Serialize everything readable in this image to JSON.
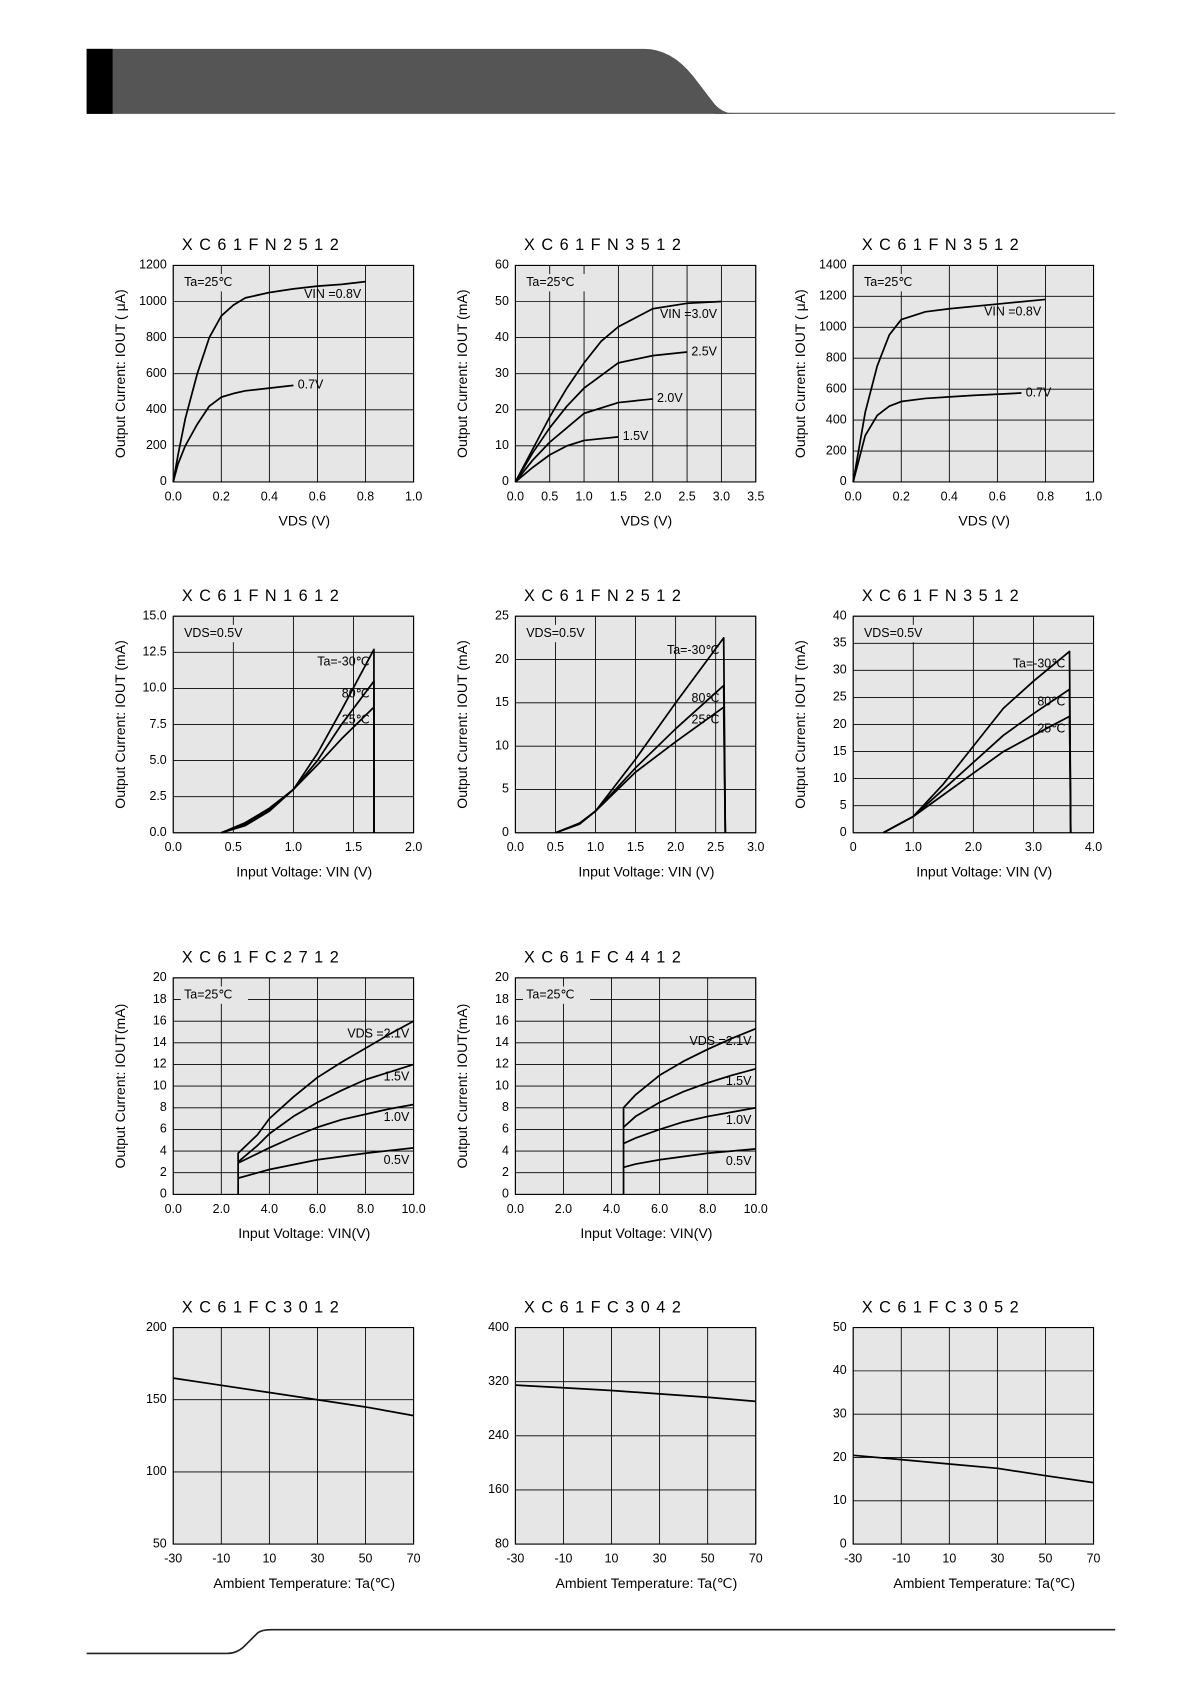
{
  "chart_data": [
    {
      "type": "line",
      "title": "XC61FN2512",
      "ylabel": "Output Current: IOUT ( μA)",
      "xlabel": "VDS (V)",
      "annotations": [
        "Ta=25℃"
      ],
      "color": "#000000",
      "grid": true,
      "xlim": [
        0,
        1
      ],
      "xticks": [
        {
          "value": 0,
          "label": "0.0"
        },
        0.2,
        0.4,
        0.6,
        0.8,
        {
          "value": 1,
          "label": "1.0"
        }
      ],
      "ylim": [
        0,
        1200
      ],
      "yticks": [
        0,
        200,
        400,
        600,
        800,
        1000,
        1200
      ],
      "series": [
        {
          "name": "VIN =0.8V",
          "x": [
            0,
            0.02,
            0.05,
            0.1,
            0.15,
            0.2,
            0.25,
            0.3,
            0.4,
            0.5,
            0.6,
            0.7,
            0.8
          ],
          "values": [
            0,
            150,
            350,
            600,
            800,
            920,
            980,
            1020,
            1050,
            1070,
            1085,
            1095,
            1110
          ]
        },
        {
          "name": "0.7V",
          "x": [
            0,
            0.02,
            0.05,
            0.1,
            0.15,
            0.2,
            0.25,
            0.3,
            0.4,
            0.5
          ],
          "values": [
            0,
            100,
            200,
            320,
            420,
            470,
            490,
            505,
            520,
            535
          ]
        }
      ]
    },
    {
      "type": "line",
      "title": "XC61FN3512",
      "ylabel": "Output Current: IOUT (mA)",
      "xlabel": "VDS (V)",
      "annotations": [
        "Ta=25℃"
      ],
      "color": "#000000",
      "grid": true,
      "xlim": [
        0,
        3.5
      ],
      "xticks": [
        {
          "value": 0,
          "label": "0.0"
        },
        0.5,
        {
          "value": 1,
          "label": "1.0"
        },
        1.5,
        {
          "value": 2,
          "label": "2.0"
        },
        2.5,
        {
          "value": 3,
          "label": "3.0"
        },
        3.5
      ],
      "ylim": [
        0,
        60
      ],
      "yticks": [
        0,
        10,
        20,
        30,
        40,
        50,
        60
      ],
      "series": [
        {
          "name": "VIN =3.0V",
          "x": [
            0,
            0.25,
            0.5,
            0.75,
            1,
            1.25,
            1.5,
            2,
            2.5,
            3
          ],
          "values": [
            0,
            9,
            18,
            26,
            33,
            39,
            43,
            48,
            49.5,
            50
          ]
        },
        {
          "name": "2.5V",
          "x": [
            0,
            0.25,
            0.5,
            0.75,
            1,
            1.5,
            2,
            2.5
          ],
          "values": [
            0,
            8,
            15,
            21,
            26,
            33,
            35,
            36
          ]
        },
        {
          "name": "2.0V",
          "x": [
            0,
            0.25,
            0.5,
            0.75,
            1,
            1.5,
            2
          ],
          "values": [
            0,
            6,
            11,
            15,
            19,
            22,
            23
          ]
        },
        {
          "name": "1.5V",
          "x": [
            0,
            0.25,
            0.5,
            0.75,
            1,
            1.5
          ],
          "values": [
            0,
            4,
            7.5,
            10,
            11.5,
            12.5
          ]
        }
      ]
    },
    {
      "type": "line",
      "title": "XC61FN3512",
      "ylabel": "Output Current: IOUT ( μA)",
      "xlabel": "VDS (V)",
      "annotations": [
        "Ta=25℃"
      ],
      "color": "#000000",
      "grid": true,
      "xlim": [
        0,
        1
      ],
      "xticks": [
        {
          "value": 0,
          "label": "0.0"
        },
        0.2,
        0.4,
        0.6,
        0.8,
        {
          "value": 1,
          "label": "1.0"
        }
      ],
      "ylim": [
        0,
        1400
      ],
      "yticks": [
        0,
        200,
        400,
        600,
        800,
        1000,
        1200,
        1400
      ],
      "series": [
        {
          "name": "VIN =0.8V",
          "x": [
            0,
            0.05,
            0.1,
            0.15,
            0.2,
            0.3,
            0.4,
            0.6,
            0.8
          ],
          "values": [
            0,
            450,
            750,
            950,
            1050,
            1100,
            1120,
            1150,
            1180
          ]
        },
        {
          "name": "0.7V",
          "x": [
            0,
            0.05,
            0.1,
            0.15,
            0.2,
            0.3,
            0.4,
            0.5,
            0.7
          ],
          "values": [
            0,
            300,
            430,
            490,
            520,
            540,
            550,
            560,
            575
          ]
        }
      ]
    },
    {
      "type": "line",
      "title": "XC61FN1612",
      "ylabel": "Output Current: IOUT (mA)",
      "xlabel": "Input Voltage: VIN (V)",
      "annotations": [
        "VDS=0.5V"
      ],
      "color": "#000000",
      "grid": true,
      "xlim": [
        0,
        2
      ],
      "xticks": [
        {
          "value": 0,
          "label": "0.0"
        },
        0.5,
        {
          "value": 1,
          "label": "1.0"
        },
        1.5,
        {
          "value": 2,
          "label": "2.0"
        }
      ],
      "ylim": [
        0,
        15
      ],
      "yticks": [
        {
          "value": 0,
          "label": "0.0"
        },
        2.5,
        {
          "value": 5,
          "label": "5.0"
        },
        7.5,
        {
          "value": 10,
          "label": "10.0"
        },
        12.5,
        {
          "value": 15,
          "label": "15.0"
        }
      ],
      "series": [
        {
          "name": "Ta=-30℃",
          "x": [
            0.4,
            0.6,
            0.8,
            1.0,
            1.2,
            1.4,
            1.67,
            1.67
          ],
          "values": [
            0,
            0.5,
            1.5,
            3,
            5.5,
            8.5,
            12.7,
            0
          ]
        },
        {
          "name": "80℃",
          "x": [
            0.4,
            0.6,
            0.8,
            1.0,
            1.2,
            1.4,
            1.67,
            1.67
          ],
          "values": [
            0,
            0.6,
            1.6,
            3,
            5,
            7.5,
            10.5,
            0
          ]
        },
        {
          "name": "25℃",
          "x": [
            0.4,
            0.6,
            0.8,
            1.0,
            1.2,
            1.4,
            1.67,
            1.67
          ],
          "values": [
            0,
            0.7,
            1.7,
            3,
            4.7,
            6.5,
            8.7,
            0
          ]
        }
      ]
    },
    {
      "type": "line",
      "title": "XC61FN2512",
      "ylabel": "Output Current: IOUT (mA)",
      "xlabel": "Input Voltage: VIN (V)",
      "annotations": [
        "VDS=0.5V"
      ],
      "color": "#000000",
      "grid": true,
      "xlim": [
        0,
        3
      ],
      "xticks": [
        {
          "value": 0,
          "label": "0.0"
        },
        0.5,
        {
          "value": 1,
          "label": "1.0"
        },
        1.5,
        {
          "value": 2,
          "label": "2.0"
        },
        2.5,
        {
          "value": 3,
          "label": "3.0"
        }
      ],
      "ylim": [
        0,
        25
      ],
      "yticks": [
        0,
        5,
        10,
        15,
        20,
        25
      ],
      "series": [
        {
          "name": "Ta=-30℃",
          "x": [
            0.5,
            0.8,
            1.0,
            1.5,
            2.0,
            2.6,
            2.62
          ],
          "values": [
            0,
            1,
            2.5,
            8.5,
            15,
            22.5,
            0
          ]
        },
        {
          "name": "80℃",
          "x": [
            0.5,
            0.8,
            1.0,
            1.5,
            2.0,
            2.6,
            2.62
          ],
          "values": [
            0,
            1,
            2.5,
            7.5,
            12,
            17,
            0
          ]
        },
        {
          "name": "25℃",
          "x": [
            0.5,
            0.8,
            1.0,
            1.5,
            2.0,
            2.6,
            2.62
          ],
          "values": [
            0,
            1.1,
            2.5,
            7,
            10.5,
            14.5,
            0
          ]
        }
      ]
    },
    {
      "type": "line",
      "title": "XC61FN3512",
      "ylabel": "Output Current: IOUT (mA)",
      "xlabel": "Input Voltage: VIN (V)",
      "annotations": [
        "VDS=0.5V"
      ],
      "color": "#000000",
      "grid": true,
      "xlim": [
        0,
        4
      ],
      "xticks": [
        0,
        {
          "value": 1,
          "label": "1.0"
        },
        {
          "value": 2,
          "label": "2.0"
        },
        {
          "value": 3,
          "label": "3.0"
        },
        {
          "value": 4,
          "label": "4.0"
        }
      ],
      "ylim": [
        0,
        40
      ],
      "yticks": [
        0,
        5,
        10,
        15,
        20,
        25,
        30,
        35,
        40
      ],
      "series": [
        {
          "name": "Ta=-30℃",
          "x": [
            0.5,
            1,
            1.5,
            2,
            2.5,
            3,
            3.6,
            3.62
          ],
          "values": [
            0,
            3,
            9,
            16,
            23,
            28,
            33.5,
            0
          ]
        },
        {
          "name": "80℃",
          "x": [
            0.5,
            1,
            1.5,
            2,
            2.5,
            3,
            3.6,
            3.62
          ],
          "values": [
            0,
            3,
            8,
            13,
            18,
            22,
            26.5,
            0
          ]
        },
        {
          "name": "25℃",
          "x": [
            0.5,
            1,
            1.5,
            2,
            2.5,
            3,
            3.6,
            3.62
          ],
          "values": [
            0,
            3,
            7,
            11,
            15,
            18,
            21.5,
            0
          ]
        }
      ]
    },
    {
      "type": "line",
      "title": "XC61FC2712",
      "ylabel": "Output Current: IOUT(mA)",
      "xlabel": "Input Voltage: VIN(V)",
      "annotations": [
        "Ta=25℃"
      ],
      "color": "#000000",
      "grid": true,
      "xlim": [
        0,
        10
      ],
      "xticks": [
        {
          "value": 0,
          "label": "0.0"
        },
        {
          "value": 2,
          "label": "2.0"
        },
        {
          "value": 4,
          "label": "4.0"
        },
        {
          "value": 6,
          "label": "6.0"
        },
        {
          "value": 8,
          "label": "8.0"
        },
        {
          "value": 10,
          "label": "10.0"
        }
      ],
      "ylim": [
        0,
        20
      ],
      "yticks": [
        0,
        2,
        4,
        6,
        8,
        10,
        12,
        14,
        16,
        18,
        20
      ],
      "series": [
        {
          "name": "VDS =2.1V",
          "x": [
            2.7,
            2.7,
            3.5,
            4,
            5,
            6,
            7,
            8,
            9,
            10
          ],
          "values": [
            0,
            3.8,
            5.5,
            7,
            9,
            10.8,
            12.2,
            13.5,
            14.8,
            16
          ]
        },
        {
          "name": "1.5V",
          "x": [
            2.7,
            3.5,
            4,
            5,
            6,
            7,
            8,
            9,
            10
          ],
          "values": [
            3,
            4.5,
            5.6,
            7.2,
            8.5,
            9.6,
            10.6,
            11.3,
            12
          ]
        },
        {
          "name": "1.0V",
          "x": [
            2.7,
            4,
            5,
            6,
            7,
            8,
            9,
            10
          ],
          "values": [
            2.9,
            4.3,
            5.3,
            6.2,
            6.9,
            7.4,
            7.9,
            8.3
          ]
        },
        {
          "name": "0.5V",
          "x": [
            2.7,
            4,
            6,
            8,
            10
          ],
          "values": [
            1.5,
            2.3,
            3.2,
            3.8,
            4.3
          ]
        }
      ]
    },
    {
      "type": "line",
      "title": "XC61FC4412",
      "ylabel": "Output Current: IOUT(mA)",
      "xlabel": "Input Voltage: VIN(V)",
      "annotations": [
        "Ta=25℃"
      ],
      "color": "#000000",
      "grid": true,
      "xlim": [
        0,
        10
      ],
      "xticks": [
        {
          "value": 0,
          "label": "0.0"
        },
        {
          "value": 2,
          "label": "2.0"
        },
        {
          "value": 4,
          "label": "4.0"
        },
        {
          "value": 6,
          "label": "6.0"
        },
        {
          "value": 8,
          "label": "8.0"
        },
        {
          "value": 10,
          "label": "10.0"
        }
      ],
      "ylim": [
        0,
        20
      ],
      "yticks": [
        0,
        2,
        4,
        6,
        8,
        10,
        12,
        14,
        16,
        18,
        20
      ],
      "series": [
        {
          "name": "VDS =2.1V",
          "x": [
            4.5,
            4.5,
            5,
            6,
            7,
            8,
            9,
            10
          ],
          "values": [
            0,
            8,
            9.2,
            11,
            12.3,
            13.4,
            14.4,
            15.3
          ]
        },
        {
          "name": "1.5V",
          "x": [
            4.5,
            5,
            6,
            7,
            8,
            9,
            10
          ],
          "values": [
            6.2,
            7.2,
            8.5,
            9.5,
            10.3,
            11,
            11.6
          ]
        },
        {
          "name": "1.0V",
          "x": [
            4.5,
            5,
            6,
            7,
            8,
            9,
            10
          ],
          "values": [
            4.7,
            5.2,
            6,
            6.7,
            7.2,
            7.6,
            8
          ]
        },
        {
          "name": "0.5V",
          "x": [
            4.5,
            5,
            6,
            8,
            10
          ],
          "values": [
            2.5,
            2.8,
            3.2,
            3.8,
            4.2
          ]
        }
      ]
    },
    {
      "type": "line",
      "title": "XC61FC3012",
      "xlabel": "Ambient Temperature: Ta(℃)",
      "color": "#000000",
      "grid": true,
      "xlim": [
        -30,
        70
      ],
      "xticks": [
        -30,
        -10,
        10,
        30,
        50,
        70
      ],
      "ylim": [
        50,
        200
      ],
      "yticks": [
        50,
        100,
        150,
        200
      ],
      "series": [
        {
          "x": [
            -30,
            -10,
            10,
            30,
            50,
            70
          ],
          "values": [
            165,
            160,
            155,
            150,
            145,
            139
          ]
        }
      ]
    },
    {
      "type": "line",
      "title": "XC61FC3042",
      "xlabel": "Ambient Temperature: Ta(℃)",
      "color": "#000000",
      "grid": true,
      "xlim": [
        -30,
        70
      ],
      "xticks": [
        -30,
        -10,
        10,
        30,
        50,
        70
      ],
      "ylim": [
        80,
        400
      ],
      "yticks": [
        80,
        160,
        240,
        320,
        400
      ],
      "series": [
        {
          "x": [
            -30,
            -10,
            10,
            30,
            50,
            70
          ],
          "values": [
            315,
            311,
            307,
            302,
            297,
            291
          ]
        }
      ]
    },
    {
      "type": "line",
      "title": "XC61FC3052",
      "xlabel": "Ambient Temperature: Ta(℃)",
      "color": "#000000",
      "grid": true,
      "xlim": [
        -30,
        70
      ],
      "xticks": [
        -30,
        -10,
        10,
        30,
        50,
        70
      ],
      "ylim": [
        0,
        50
      ],
      "yticks": [
        0,
        10,
        20,
        30,
        40,
        50
      ],
      "series": [
        {
          "x": [
            -30,
            -10,
            10,
            30,
            50,
            70
          ],
          "values": [
            20.5,
            19.5,
            18.5,
            17.5,
            15.8,
            14.2
          ]
        }
      ]
    }
  ]
}
